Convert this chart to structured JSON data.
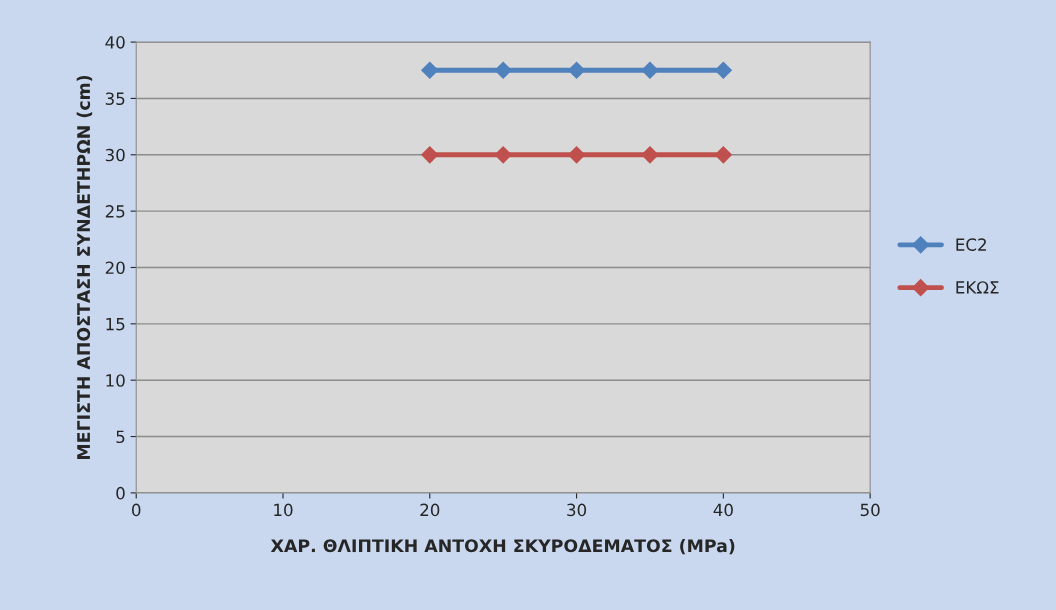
{
  "chart_data": {
    "type": "line",
    "xlabel": "ΧΑΡ. ΘΛΙΠΤΙΚΗ ΑΝΤΟΧΗ ΣΚΥΡΟΔΕΜΑΤΟΣ (MPa)",
    "ylabel": "ΜΕΓΙΣΤΗ ΑΠΟΣΤΑΣΗ ΣΥΝΔΕΤΗΡΩΝ (cm)",
    "x": [
      20,
      25,
      30,
      35,
      40
    ],
    "series": [
      {
        "name": "EC2",
        "color": "#4f81bd",
        "values": [
          37.5,
          37.5,
          37.5,
          37.5,
          37.5
        ]
      },
      {
        "name": "ΕΚΩΣ",
        "color": "#c0504d",
        "values": [
          30,
          30,
          30,
          30,
          30
        ]
      }
    ],
    "xlim": [
      0,
      50
    ],
    "xticks": [
      0,
      10,
      20,
      30,
      40,
      50
    ],
    "ylim": [
      0,
      40
    ],
    "yticks": [
      0,
      5,
      10,
      15,
      20,
      25,
      30,
      35,
      40
    ],
    "grid": "y",
    "legend": "right",
    "marker": "diamond",
    "line_style": "solid"
  }
}
